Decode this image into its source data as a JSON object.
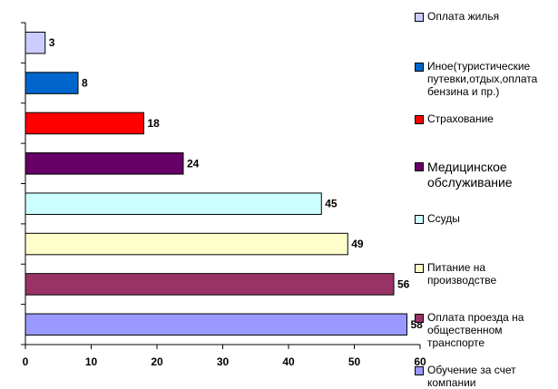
{
  "chart_data": {
    "type": "bar",
    "orientation": "horizontal",
    "xlim": [
      0,
      60
    ],
    "xticks": [
      0,
      10,
      20,
      30,
      40,
      50,
      60
    ],
    "grid": false,
    "legend_position": "right",
    "series": [
      {
        "name": "Оплата жилья",
        "value": 3,
        "color": "#ccccff"
      },
      {
        "name": "Иное(туристические путевки,отдых,оплата бензина и пр.)",
        "value": 8,
        "color": "#0066cc"
      },
      {
        "name": "Страхование",
        "value": 18,
        "color": "#ff0000"
      },
      {
        "name": "Медицинское обслуживание",
        "value": 24,
        "color": "#660066"
      },
      {
        "name": "Ссуды",
        "value": 45,
        "color": "#ccffff"
      },
      {
        "name": "Питание на производстве",
        "value": 49,
        "color": "#ffffcc"
      },
      {
        "name": "Оплата проезда на общественном транспорте",
        "value": 56,
        "color": "#993366"
      },
      {
        "name": "Обучение за счет компании",
        "value": 58,
        "color": "#9999ff"
      }
    ],
    "legend": [
      {
        "label": "Оплата жилья",
        "color": "#ccccff"
      },
      {
        "label": "Иное(туристические\nпутевки,отдых,оплата\nбензина и пр.)",
        "color": "#0066cc"
      },
      {
        "label": "Страхование",
        "color": "#ff0000"
      },
      {
        "label": "Медицинское\nобслуживание",
        "color": "#660066"
      },
      {
        "label": "Ссуды",
        "color": "#ccffff"
      },
      {
        "label": "Питание на\nпроизводстве",
        "color": "#ffffcc"
      },
      {
        "label": "Оплата проезда на\nобщественном\nтранспорте",
        "color": "#993366"
      },
      {
        "label": "Обучение за счет\nкомпании",
        "color": "#9999ff"
      }
    ]
  }
}
